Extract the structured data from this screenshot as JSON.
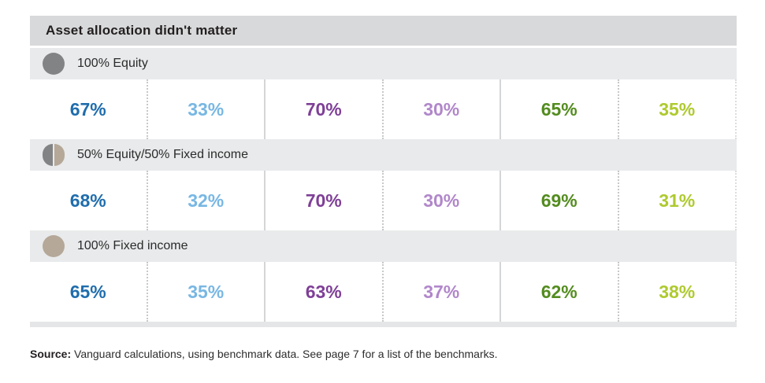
{
  "figure": {
    "title": "Asset allocation didn't matter",
    "sections": [
      {
        "label": "100% Equity",
        "icon": "equity-circle",
        "values": [
          "67%",
          "33%",
          "70%",
          "30%",
          "65%",
          "35%"
        ]
      },
      {
        "label": "50% Equity/50% Fixed income",
        "icon": "half-equity-half-fixed-circle",
        "values": [
          "68%",
          "32%",
          "70%",
          "30%",
          "69%",
          "31%"
        ]
      },
      {
        "label": "100% Fixed income",
        "icon": "fixed-income-circle",
        "values": [
          "65%",
          "35%",
          "63%",
          "37%",
          "62%",
          "38%"
        ]
      }
    ],
    "source_label": "Source:",
    "source_text": " Vanguard calculations, using benchmark data. See page 7 for a list of the benchmarks."
  },
  "palette": {
    "value_colors": [
      "#1f6dad",
      "#78b7e3",
      "#7f3f97",
      "#b187ca",
      "#538c1f",
      "#aeca2f"
    ],
    "equity_gray": "#828385",
    "fixed_income_tan": "#b5a899",
    "title_band_gray": "#d8d9da",
    "section_band_gray": "#e8eaeb"
  },
  "chart_data": {
    "type": "table",
    "title": "Asset allocation didn't matter",
    "row_labels": [
      "100% Equity",
      "50% Equity/50% Fixed income",
      "100% Fixed income"
    ],
    "series": [
      {
        "name": "100% Equity",
        "values_pct": [
          67,
          33,
          70,
          30,
          65,
          35
        ]
      },
      {
        "name": "50% Equity/50% Fixed income",
        "values_pct": [
          68,
          32,
          70,
          30,
          69,
          31
        ]
      },
      {
        "name": "100% Fixed income",
        "values_pct": [
          65,
          35,
          63,
          37,
          62,
          38
        ]
      }
    ],
    "value_colors": [
      "#1f6dad",
      "#78b7e3",
      "#7f3f97",
      "#b187ca",
      "#538c1f",
      "#aeca2f"
    ],
    "layout": "three banded rows, each with six percentage cells separated by alternating dotted and solid vertical rules"
  }
}
